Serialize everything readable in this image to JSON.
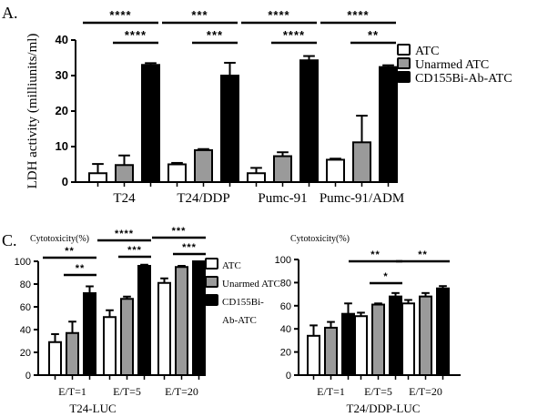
{
  "colors": {
    "ATC": "#ffffff",
    "Unarmed ATC": "#9a9a9a",
    "CD155Bi-Ab-ATC": "#000000",
    "stroke": "#000000"
  },
  "chart_data": [
    {
      "panel_label": "A.",
      "type": "bar",
      "ylabel": "LDH activity (milliunits/ml)",
      "ylim": [
        0,
        40
      ],
      "yticks": [
        0,
        10,
        20,
        30,
        40
      ],
      "categories": [
        "T24",
        "T24/DDP",
        "Pumc-91",
        "Pumc-91/ADM"
      ],
      "legend": [
        "ATC",
        "Unarmed ATC",
        "CD155Bi-Ab-ATC"
      ],
      "legend_placement": "right",
      "series": [
        {
          "name": "ATC",
          "values": [
            2.5,
            5.0,
            2.5,
            6.3
          ],
          "errors": [
            2.6,
            0.4,
            1.5,
            0.3
          ]
        },
        {
          "name": "Unarmed ATC",
          "values": [
            4.8,
            9.0,
            7.3,
            11.2
          ],
          "errors": [
            2.7,
            0.3,
            1.1,
            7.5
          ]
        },
        {
          "name": "CD155Bi-Ab-ATC",
          "values": [
            33.0,
            30.0,
            34.3,
            32.4
          ],
          "errors": [
            0.5,
            3.6,
            1.2,
            0.5
          ]
        }
      ],
      "significance": [
        {
          "group": 0,
          "from": 0,
          "to": 2,
          "label": "****"
        },
        {
          "group": 0,
          "from": 1,
          "to": 2,
          "label": "****"
        },
        {
          "group": 1,
          "from": 0,
          "to": 2,
          "label": "***"
        },
        {
          "group": 1,
          "from": 1,
          "to": 2,
          "label": "***"
        },
        {
          "group": 2,
          "from": 0,
          "to": 2,
          "label": "****"
        },
        {
          "group": 2,
          "from": 1,
          "to": 2,
          "label": "****"
        },
        {
          "group": 3,
          "from": 0,
          "to": 2,
          "label": "****"
        },
        {
          "group": 3,
          "from": 1,
          "to": 2,
          "label": "**"
        }
      ]
    },
    {
      "panel_label": "C.",
      "type": "bar",
      "ylabel": "Cytotoxicity(%)",
      "xlabel": "T24-LUC",
      "ylim": [
        0,
        100
      ],
      "yticks": [
        0,
        20,
        40,
        60,
        80,
        100
      ],
      "categories": [
        "E/T=1",
        "E/T=5",
        "E/T=20"
      ],
      "legend": [
        "ATC",
        "Unarmed ATC",
        "CD155Bi-",
        "Ab-ATC"
      ],
      "legend_placement": "right",
      "series": [
        {
          "name": "ATC",
          "values": [
            29,
            51,
            81
          ],
          "errors": [
            7,
            6,
            4
          ]
        },
        {
          "name": "Unarmed ATC",
          "values": [
            37,
            67,
            95
          ],
          "errors": [
            10,
            2,
            1
          ]
        },
        {
          "name": "CD155Bi-Ab-ATC",
          "values": [
            72,
            96,
            100
          ],
          "errors": [
            6,
            1,
            0
          ]
        }
      ],
      "significance": [
        {
          "group": 0,
          "from": 0,
          "to": 2,
          "label": "**"
        },
        {
          "group": 0,
          "from": 1,
          "to": 2,
          "label": "**"
        },
        {
          "group": 1,
          "from": 0,
          "to": 2,
          "label": "****"
        },
        {
          "group": 1,
          "from": 1,
          "to": 2,
          "label": "***"
        },
        {
          "group": 2,
          "from": 0,
          "to": 2,
          "label": "***"
        },
        {
          "group": 2,
          "from": 1,
          "to": 2,
          "label": "***"
        }
      ]
    },
    {
      "type": "bar",
      "ylabel": "Cytotoxicity(%)",
      "xlabel": "T24/DDP-LUC",
      "ylim": [
        0,
        100
      ],
      "yticks": [
        0,
        20,
        40,
        60,
        80,
        100
      ],
      "categories": [
        "E/T=1",
        "E/T=5",
        "E/T=20"
      ],
      "series": [
        {
          "name": "ATC",
          "values": [
            34,
            51,
            62
          ],
          "errors": [
            9,
            3,
            3
          ]
        },
        {
          "name": "Unarmed ATC",
          "values": [
            41,
            61,
            68
          ],
          "errors": [
            5,
            1,
            3
          ]
        },
        {
          "name": "CD155Bi-Ab-ATC",
          "values": [
            53,
            68,
            75
          ],
          "errors": [
            9,
            3,
            2
          ]
        }
      ],
      "significance": [
        {
          "group": 1,
          "from": 0,
          "to": 2,
          "label": "**"
        },
        {
          "group": 1,
          "from": 1,
          "to": 2,
          "label": "*"
        },
        {
          "group": 2,
          "from": 0,
          "to": 2,
          "label": "**"
        }
      ]
    }
  ]
}
